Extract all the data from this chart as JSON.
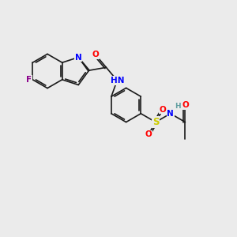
{
  "bg_color": "#ebebeb",
  "bond_color": "#1a1a1a",
  "atom_colors": {
    "F": "#8b008b",
    "N": "#0000ff",
    "O": "#ff0000",
    "S": "#cccc00",
    "H_color": "#5f9ea0"
  },
  "lw": 1.2,
  "fs": 7.5,
  "fig_w": 3.0,
  "fig_h": 3.0,
  "dpi": 100
}
